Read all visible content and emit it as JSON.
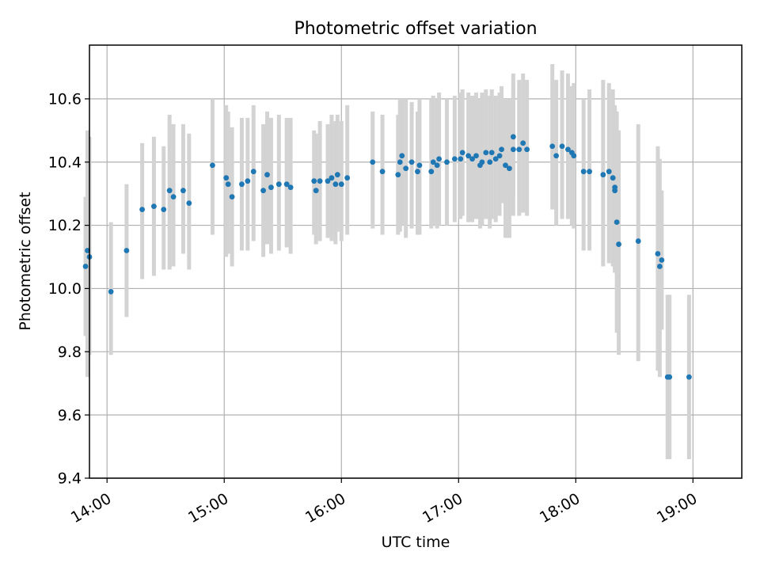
{
  "chart_data": {
    "type": "scatter",
    "title": "Photometric offset variation",
    "xlabel": "UTC time",
    "ylabel": "Photometric offset",
    "xlim": [
      "13:51",
      "19:25"
    ],
    "ylim": [
      9.4,
      10.77
    ],
    "xticks": [
      "14:00",
      "15:00",
      "16:00",
      "17:00",
      "18:00",
      "19:00"
    ],
    "yticks": [
      "9.4",
      "9.6",
      "9.8",
      "10.0",
      "10.2",
      "10.4",
      "10.6"
    ],
    "grid": true,
    "colors": {
      "point": "#1f77b4",
      "errorbar": "#d3d3d3",
      "grid": "#b0b0b0"
    },
    "series": [
      {
        "x": [
          "13:49",
          "13:50",
          "13:51",
          "14:02",
          "14:10",
          "14:18",
          "14:24",
          "14:29",
          "14:32",
          "14:34",
          "14:39",
          "14:42",
          "14:54",
          "15:01",
          "15:02",
          "15:04",
          "15:09",
          "15:12",
          "15:15",
          "15:20",
          "15:22",
          "15:24",
          "15:28",
          "15:32",
          "15:34",
          "15:46",
          "15:47",
          "15:49",
          "15:53",
          "15:55",
          "15:57",
          "15:58",
          "16:00",
          "16:03",
          "16:16",
          "16:21",
          "16:29",
          "16:30",
          "16:31",
          "16:33",
          "16:36",
          "16:39",
          "16:40",
          "16:46",
          "16:47",
          "16:49",
          "16:50",
          "16:54",
          "16:58",
          "17:01",
          "17:02",
          "17:05",
          "17:07",
          "17:09",
          "17:11",
          "17:12",
          "17:14",
          "17:16",
          "17:17",
          "17:19",
          "17:21",
          "17:22",
          "17:24",
          "17:26",
          "17:28",
          "17:28",
          "17:31",
          "17:33",
          "17:35",
          "17:48",
          "17:50",
          "17:53",
          "17:56",
          "17:58",
          "17:59",
          "18:04",
          "18:07",
          "18:14",
          "18:17",
          "18:19",
          "18:20",
          "18:20",
          "18:21",
          "18:22",
          "18:32",
          "18:42",
          "18:43",
          "18:44",
          "18:47",
          "18:48",
          "18:58"
        ],
        "y": [
          10.07,
          10.12,
          10.1,
          9.99,
          10.12,
          10.25,
          10.26,
          10.25,
          10.31,
          10.29,
          10.31,
          10.27,
          10.39,
          10.35,
          10.33,
          10.29,
          10.33,
          10.34,
          10.37,
          10.31,
          10.36,
          10.32,
          10.33,
          10.33,
          10.32,
          10.34,
          10.31,
          10.34,
          10.34,
          10.35,
          10.33,
          10.36,
          10.33,
          10.35,
          10.4,
          10.37,
          10.36,
          10.4,
          10.42,
          10.38,
          10.4,
          10.37,
          10.39,
          10.37,
          10.4,
          10.39,
          10.41,
          10.4,
          10.41,
          10.41,
          10.43,
          10.42,
          10.41,
          10.42,
          10.39,
          10.4,
          10.43,
          10.4,
          10.43,
          10.41,
          10.42,
          10.44,
          10.39,
          10.38,
          10.48,
          10.44,
          10.44,
          10.46,
          10.44,
          10.45,
          10.42,
          10.45,
          10.44,
          10.43,
          10.42,
          10.37,
          10.37,
          10.36,
          10.37,
          10.35,
          10.32,
          10.31,
          10.21,
          10.14,
          10.15,
          10.11,
          10.07,
          10.09,
          9.72,
          9.72,
          9.72
        ],
        "ylow": [
          9.85,
          9.72,
          9.79,
          9.79,
          9.91,
          10.03,
          10.04,
          10.06,
          10.06,
          10.07,
          10.11,
          10.06,
          10.17,
          10.1,
          10.11,
          10.07,
          10.12,
          10.12,
          10.15,
          10.1,
          10.14,
          10.11,
          10.12,
          10.13,
          10.11,
          10.17,
          10.14,
          10.15,
          10.16,
          10.15,
          10.14,
          10.18,
          10.15,
          10.17,
          10.19,
          10.17,
          10.17,
          10.18,
          10.2,
          10.16,
          10.19,
          10.17,
          10.17,
          10.19,
          10.2,
          10.19,
          10.2,
          10.2,
          10.21,
          10.22,
          10.23,
          10.21,
          10.21,
          10.22,
          10.19,
          10.2,
          10.22,
          10.19,
          10.22,
          10.21,
          10.23,
          10.27,
          10.16,
          10.16,
          10.28,
          10.23,
          10.23,
          10.24,
          10.23,
          10.25,
          10.2,
          10.22,
          10.22,
          10.2,
          10.19,
          10.12,
          10.12,
          10.07,
          10.08,
          10.07,
          10.06,
          10.05,
          9.86,
          9.79,
          9.77,
          9.74,
          9.72,
          9.87,
          9.46,
          9.46,
          9.46
        ],
        "yhigh": [
          10.29,
          10.5,
          10.48,
          10.21,
          10.33,
          10.46,
          10.48,
          10.45,
          10.55,
          10.52,
          10.52,
          10.49,
          10.6,
          10.58,
          10.56,
          10.51,
          10.54,
          10.54,
          10.58,
          10.52,
          10.56,
          10.54,
          10.55,
          10.54,
          10.54,
          10.5,
          10.49,
          10.53,
          10.52,
          10.55,
          10.53,
          10.55,
          10.53,
          10.58,
          10.56,
          10.55,
          10.55,
          10.6,
          10.6,
          10.6,
          10.59,
          10.56,
          10.6,
          10.6,
          10.61,
          10.6,
          10.62,
          10.6,
          10.61,
          10.62,
          10.63,
          10.62,
          10.61,
          10.62,
          10.6,
          10.62,
          10.63,
          10.61,
          10.63,
          10.61,
          10.62,
          10.64,
          10.6,
          10.6,
          10.68,
          10.65,
          10.66,
          10.68,
          10.66,
          10.71,
          10.66,
          10.69,
          10.68,
          10.64,
          10.65,
          10.6,
          10.63,
          10.66,
          10.65,
          10.63,
          10.58,
          10.57,
          10.56,
          10.5,
          10.52,
          10.45,
          10.41,
          10.31,
          9.98,
          9.98,
          9.98
        ]
      }
    ]
  }
}
